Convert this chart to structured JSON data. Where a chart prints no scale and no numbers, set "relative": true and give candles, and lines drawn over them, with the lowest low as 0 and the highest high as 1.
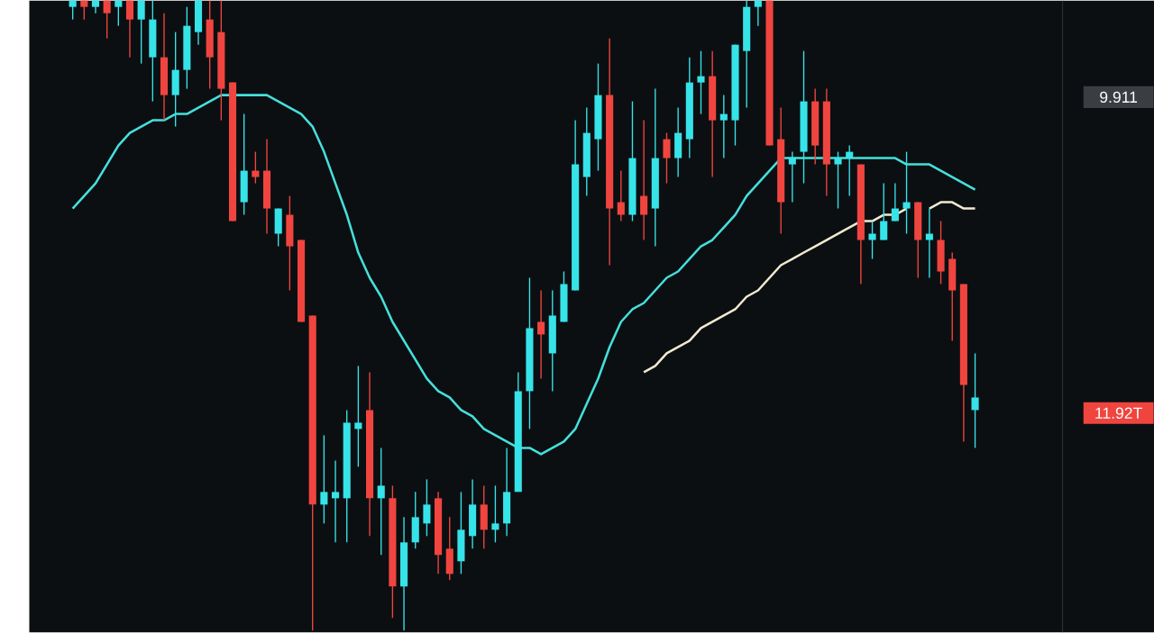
{
  "chart_data": {
    "type": "candlestick",
    "relative": true,
    "categories": [
      null,
      null,
      null,
      null,
      null,
      null,
      null,
      null,
      null,
      null,
      null,
      null,
      null,
      null,
      null,
      null,
      null,
      null,
      null,
      null,
      null,
      null,
      null,
      null,
      null,
      null,
      null,
      null,
      null,
      null,
      null,
      null,
      null,
      null,
      null,
      null,
      null,
      null,
      null,
      null,
      null,
      null,
      null,
      null,
      null,
      null,
      null,
      null,
      null,
      null,
      null,
      null,
      null,
      null,
      null,
      null,
      null,
      null,
      null,
      null,
      null,
      null,
      null,
      null,
      null,
      null,
      null,
      null,
      null,
      null,
      null,
      null,
      null,
      null,
      null,
      null,
      null,
      null,
      null,
      null
    ],
    "ohlc": [
      [
        0.99,
        1.0,
        0.97,
        1.0
      ],
      [
        1.0,
        1.0,
        0.97,
        0.99
      ],
      [
        0.99,
        1.0,
        0.98,
        1.0
      ],
      [
        1.0,
        1.0,
        0.94,
        0.98
      ],
      [
        0.99,
        1.0,
        0.96,
        1.0
      ],
      [
        1.0,
        1.0,
        0.91,
        0.97
      ],
      [
        0.97,
        1.0,
        0.9,
        1.0
      ],
      [
        0.91,
        1.0,
        0.84,
        0.97
      ],
      [
        0.91,
        0.98,
        0.81,
        0.85
      ],
      [
        0.85,
        0.95,
        0.8,
        0.89
      ],
      [
        0.89,
        0.99,
        0.86,
        0.96
      ],
      [
        0.95,
        1.0,
        0.93,
        1.0
      ],
      [
        0.97,
        1.0,
        0.86,
        0.91
      ],
      [
        0.95,
        1.0,
        0.81,
        0.86
      ],
      [
        0.87,
        0.87,
        0.65,
        0.65
      ],
      [
        0.68,
        0.82,
        0.66,
        0.73
      ],
      [
        0.73,
        0.76,
        0.71,
        0.72
      ],
      [
        0.73,
        0.78,
        0.63,
        0.67
      ],
      [
        0.63,
        0.67,
        0.61,
        0.67
      ],
      [
        0.66,
        0.69,
        0.54,
        0.61
      ],
      [
        0.62,
        0.62,
        0.49,
        0.49
      ],
      [
        0.5,
        0.5,
        0.0,
        0.2
      ],
      [
        0.2,
        0.31,
        0.17,
        0.22
      ],
      [
        0.21,
        0.27,
        0.14,
        0.22
      ],
      [
        0.21,
        0.35,
        0.14,
        0.33
      ],
      [
        0.32,
        0.42,
        0.26,
        0.33
      ],
      [
        0.35,
        0.41,
        0.15,
        0.21
      ],
      [
        0.21,
        0.29,
        0.12,
        0.23
      ],
      [
        0.21,
        0.23,
        0.02,
        0.07
      ],
      [
        0.07,
        0.18,
        0.0,
        0.14
      ],
      [
        0.14,
        0.22,
        0.13,
        0.18
      ],
      [
        0.17,
        0.24,
        0.15,
        0.2
      ],
      [
        0.21,
        0.22,
        0.09,
        0.12
      ],
      [
        0.13,
        0.18,
        0.08,
        0.09
      ],
      [
        0.11,
        0.22,
        0.09,
        0.16
      ],
      [
        0.15,
        0.24,
        0.13,
        0.2
      ],
      [
        0.2,
        0.23,
        0.13,
        0.16
      ],
      [
        0.16,
        0.23,
        0.14,
        0.17
      ],
      [
        0.17,
        0.29,
        0.15,
        0.22
      ],
      [
        0.22,
        0.41,
        0.22,
        0.38
      ],
      [
        0.38,
        0.56,
        0.32,
        0.48
      ],
      [
        0.49,
        0.54,
        0.4,
        0.47
      ],
      [
        0.44,
        0.54,
        0.38,
        0.5
      ],
      [
        0.49,
        0.57,
        0.49,
        0.55
      ],
      [
        0.54,
        0.81,
        0.54,
        0.74
      ],
      [
        0.72,
        0.83,
        0.69,
        0.79
      ],
      [
        0.78,
        0.9,
        0.73,
        0.85
      ],
      [
        0.85,
        0.94,
        0.58,
        0.67
      ],
      [
        0.68,
        0.73,
        0.65,
        0.66
      ],
      [
        0.66,
        0.84,
        0.65,
        0.75
      ],
      [
        0.69,
        0.81,
        0.62,
        0.66
      ],
      [
        0.67,
        0.86,
        0.61,
        0.75
      ],
      [
        0.78,
        0.79,
        0.71,
        0.75
      ],
      [
        0.75,
        0.83,
        0.72,
        0.79
      ],
      [
        0.78,
        0.91,
        0.75,
        0.87
      ],
      [
        0.87,
        0.92,
        0.82,
        0.88
      ],
      [
        0.88,
        0.92,
        0.72,
        0.81
      ],
      [
        0.81,
        0.85,
        0.75,
        0.82
      ],
      [
        0.81,
        0.93,
        0.77,
        0.93
      ],
      [
        0.92,
        1.0,
        0.83,
        0.99
      ],
      [
        0.99,
        1.0,
        0.96,
        1.0
      ],
      [
        1.0,
        1.0,
        0.77,
        0.77
      ],
      [
        0.78,
        0.83,
        0.63,
        0.68
      ],
      [
        0.74,
        0.76,
        0.68,
        0.75
      ],
      [
        0.76,
        0.92,
        0.71,
        0.84
      ],
      [
        0.84,
        0.86,
        0.74,
        0.77
      ],
      [
        0.84,
        0.86,
        0.69,
        0.74
      ],
      [
        0.74,
        0.76,
        0.67,
        0.75
      ],
      [
        0.75,
        0.77,
        0.69,
        0.76
      ],
      [
        0.74,
        0.74,
        0.55,
        0.62
      ],
      [
        0.62,
        0.65,
        0.59,
        0.63
      ],
      [
        0.62,
        0.71,
        0.62,
        0.65
      ],
      [
        0.65,
        0.71,
        0.65,
        0.67
      ],
      [
        0.67,
        0.76,
        0.63,
        0.68
      ],
      [
        0.68,
        0.68,
        0.56,
        0.62
      ],
      [
        0.62,
        0.67,
        0.56,
        0.63
      ],
      [
        0.62,
        0.65,
        0.55,
        0.57
      ],
      [
        0.59,
        0.6,
        0.46,
        0.54
      ],
      [
        0.55,
        0.55,
        0.3,
        0.39
      ],
      [
        0.35,
        0.44,
        0.29,
        0.37
      ]
    ],
    "colors": [
      "#36e3e8",
      "#f0453f",
      "#36e3e8",
      "#f0453f",
      "#36e3e8",
      "#f0453f",
      "#36e3e8",
      "#36e3e8",
      "#f0453f",
      "#36e3e8",
      "#36e3e8",
      "#36e3e8",
      "#f0453f",
      "#f0453f",
      "#f0453f",
      "#36e3e8",
      "#f0453f",
      "#f0453f",
      "#36e3e8",
      "#f0453f",
      "#f0453f",
      "#f0453f",
      "#36e3e8",
      "#36e3e8",
      "#36e3e8",
      "#36e3e8",
      "#f0453f",
      "#36e3e8",
      "#f0453f",
      "#36e3e8",
      "#36e3e8",
      "#36e3e8",
      "#f0453f",
      "#f0453f",
      "#36e3e8",
      "#36e3e8",
      "#f0453f",
      "#36e3e8",
      "#36e3e8",
      "#36e3e8",
      "#36e3e8",
      "#f0453f",
      "#36e3e8",
      "#36e3e8",
      "#36e3e8",
      "#36e3e8",
      "#36e3e8",
      "#f0453f",
      "#f0453f",
      "#36e3e8",
      "#f0453f",
      "#36e3e8",
      "#f0453f",
      "#36e3e8",
      "#36e3e8",
      "#36e3e8",
      "#f0453f",
      "#36e3e8",
      "#36e3e8",
      "#36e3e8",
      "#36e3e8",
      "#f0453f",
      "#f0453f",
      "#36e3e8",
      "#36e3e8",
      "#f0453f",
      "#f0453f",
      "#36e3e8",
      "#36e3e8",
      "#f0453f",
      "#36e3e8",
      "#36e3e8",
      "#36e3e8",
      "#36e3e8",
      "#f0453f",
      "#36e3e8",
      "#f0453f",
      "#f0453f",
      "#f0453f",
      "#36e3e8"
    ],
    "series": [
      {
        "type": "line",
        "color": "#45e0dc",
        "values": [
          0.67,
          0.69,
          0.71,
          0.74,
          0.77,
          0.79,
          0.8,
          0.81,
          0.81,
          0.82,
          0.82,
          0.83,
          0.84,
          0.85,
          0.85,
          0.85,
          0.85,
          0.85,
          0.84,
          0.83,
          0.82,
          0.8,
          0.76,
          0.71,
          0.66,
          0.6,
          0.56,
          0.53,
          0.49,
          0.46,
          0.43,
          0.4,
          0.38,
          0.37,
          0.35,
          0.34,
          0.32,
          0.31,
          0.3,
          0.29,
          0.29,
          0.28,
          0.29,
          0.3,
          0.32,
          0.36,
          0.4,
          0.45,
          0.49,
          0.51,
          0.52,
          0.54,
          0.56,
          0.57,
          0.59,
          0.61,
          0.62,
          0.64,
          0.66,
          0.69,
          0.71,
          0.73,
          0.75,
          0.75,
          0.75,
          0.75,
          0.75,
          0.75,
          0.75,
          0.75,
          0.75,
          0.75,
          0.75,
          0.74,
          0.74,
          0.74,
          0.73,
          0.72,
          0.71,
          0.7
        ]
      },
      {
        "type": "line",
        "color": "#f2ead0",
        "values": [
          null,
          null,
          null,
          null,
          null,
          null,
          null,
          null,
          null,
          null,
          null,
          null,
          null,
          null,
          null,
          null,
          null,
          null,
          null,
          null,
          null,
          null,
          null,
          null,
          null,
          null,
          null,
          null,
          null,
          null,
          null,
          null,
          null,
          null,
          null,
          null,
          null,
          null,
          null,
          null,
          null,
          null,
          null,
          null,
          null,
          null,
          null,
          null,
          null,
          null,
          0.41,
          0.42,
          0.44,
          0.45,
          0.46,
          0.48,
          0.49,
          0.5,
          0.51,
          0.53,
          0.54,
          0.56,
          0.58,
          0.59,
          0.6,
          0.61,
          0.62,
          0.63,
          0.64,
          0.65,
          0.65,
          0.66,
          0.66,
          0.67,
          null,
          0.67,
          0.68,
          0.68,
          0.67,
          0.67
        ]
      }
    ],
    "annotations": [
      "9.911",
      "11.92T"
    ]
  }
}
